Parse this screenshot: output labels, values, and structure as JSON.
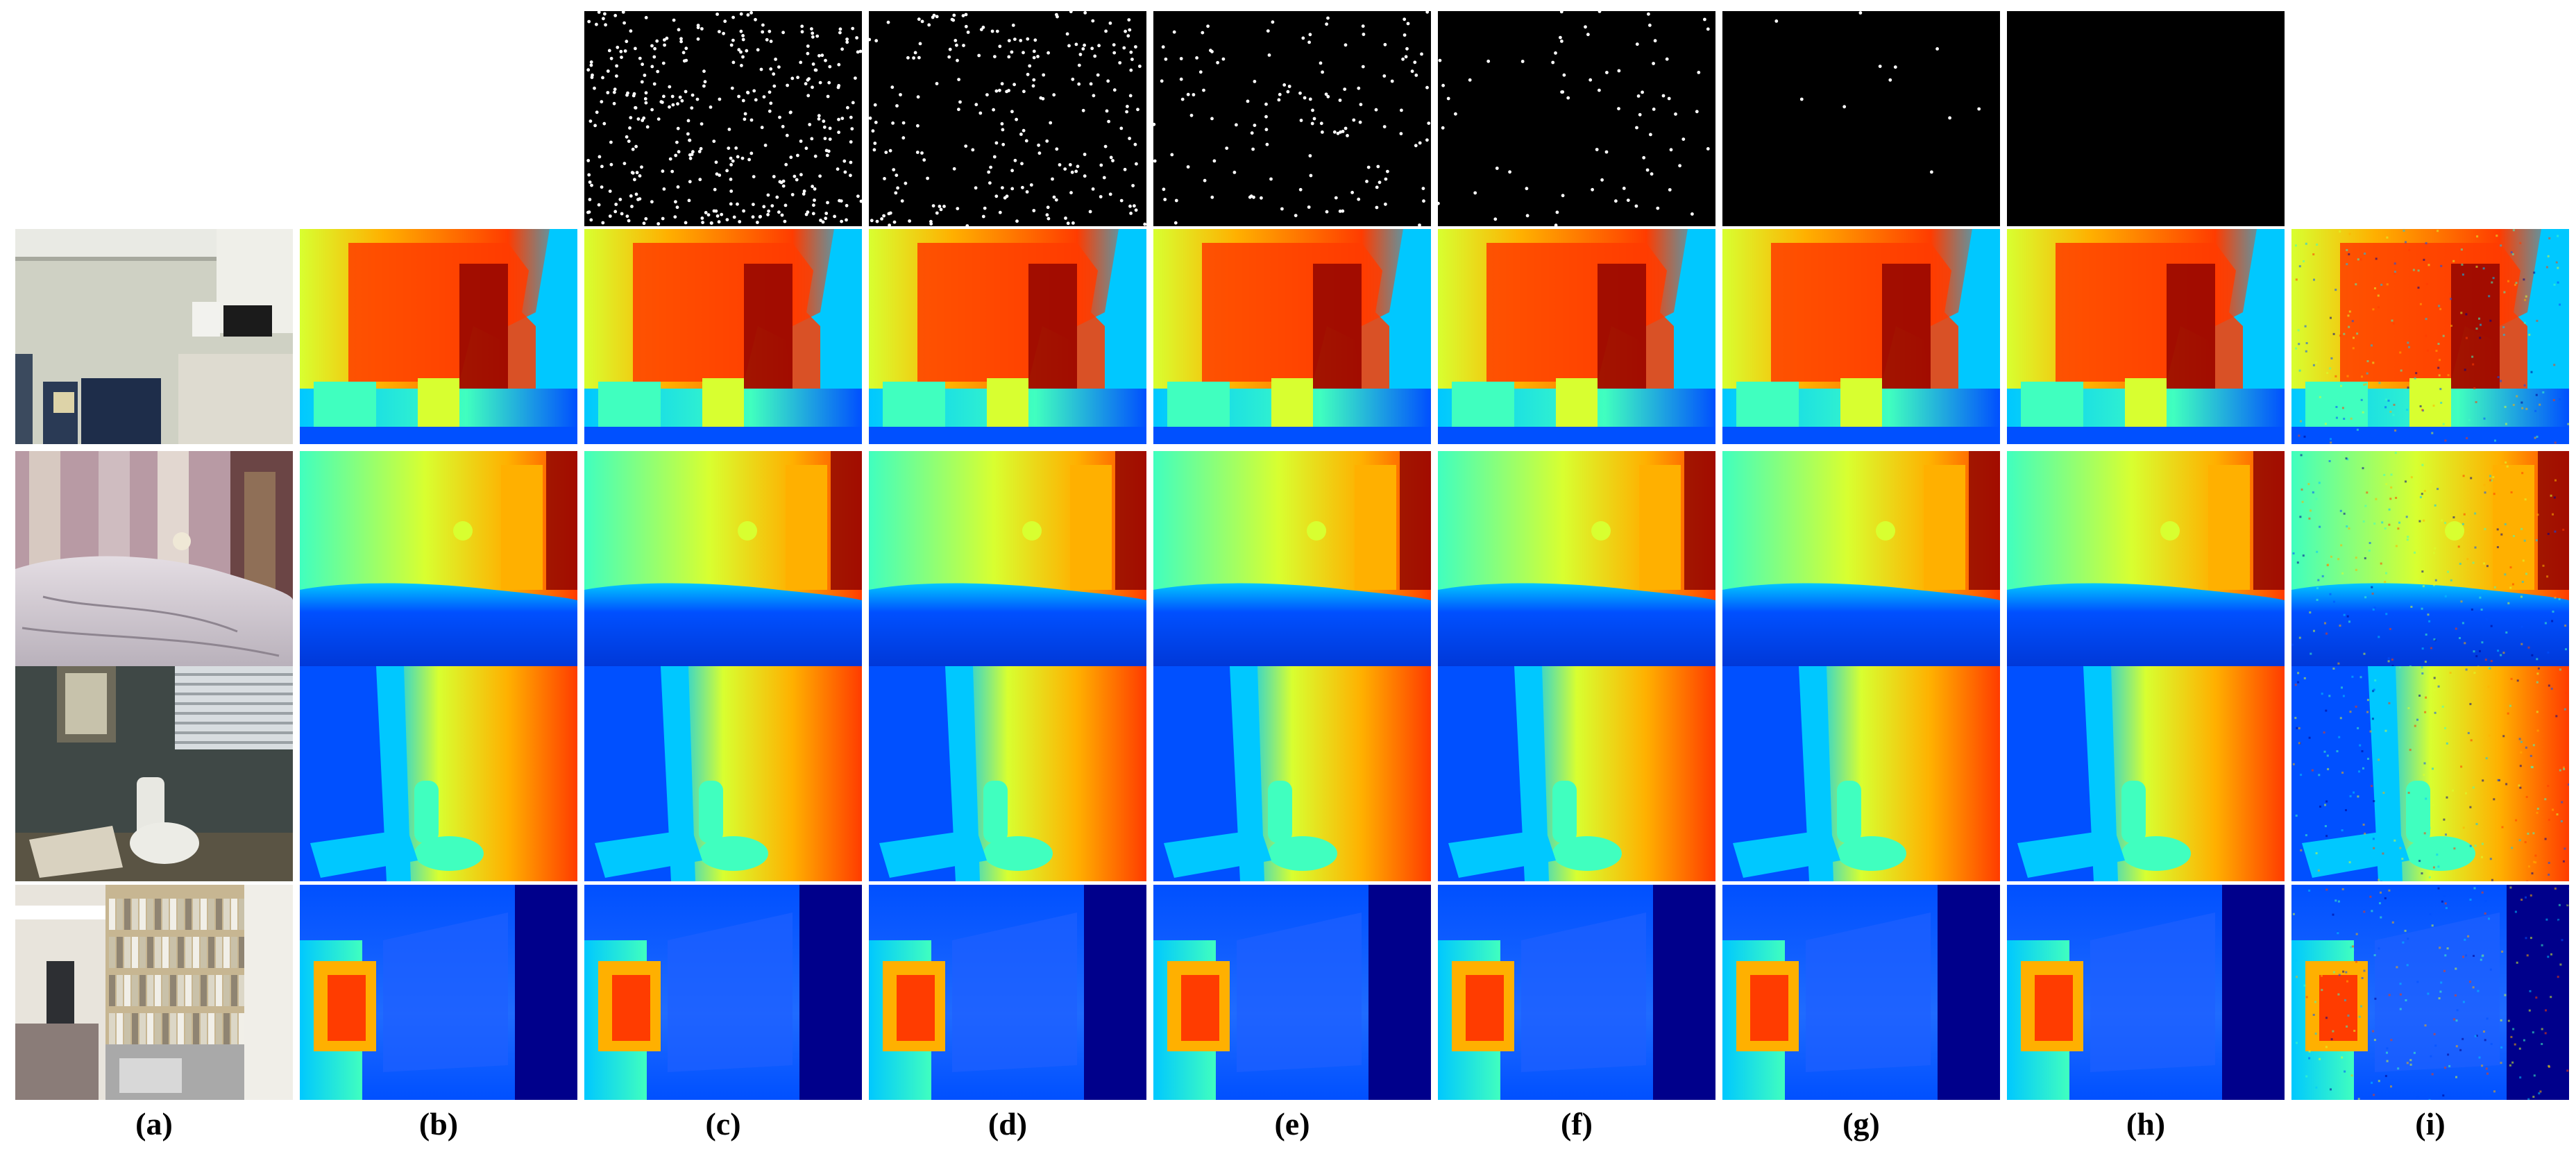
{
  "figure": {
    "column_labels": [
      "(a)",
      "(b)",
      "(c)",
      "(d)",
      "(e)",
      "(f)",
      "(g)",
      "(h)",
      "(i)"
    ],
    "rows": [
      {
        "scene": "office-kitchen"
      },
      {
        "scene": "bedroom"
      },
      {
        "scene": "bathroom"
      },
      {
        "scene": "library-corridor"
      }
    ],
    "sparse_masks": [
      {
        "column": "(c)",
        "density": 1.0
      },
      {
        "column": "(d)",
        "density": 0.62
      },
      {
        "column": "(e)",
        "density": 0.36
      },
      {
        "column": "(f)",
        "density": 0.19
      },
      {
        "column": "(g)",
        "density": 0.03
      },
      {
        "column": "(h)",
        "density": 0.0
      }
    ],
    "colormap": [
      "#00008b",
      "#0050ff",
      "#00c8ff",
      "#40ffbf",
      "#d8ff30",
      "#ffb000",
      "#ff3c00",
      "#8b0000"
    ]
  }
}
